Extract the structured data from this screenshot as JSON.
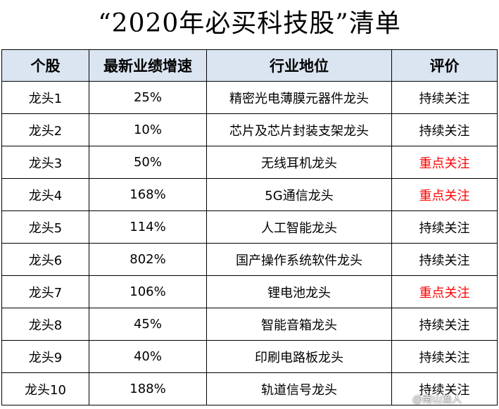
{
  "title": "“2020年必买科技股”清单",
  "table": {
    "headers": [
      "个股",
      "最新业绩增速",
      "行业地位",
      "评价"
    ],
    "rows": [
      {
        "stock": "龙头1",
        "growth": "25%",
        "position": "精密光电薄膜元器件龙头",
        "rating": "持续关注",
        "highlight": false
      },
      {
        "stock": "龙头2",
        "growth": "10%",
        "position": "芯片及芯片封装支架龙头",
        "rating": "持续关注",
        "highlight": false
      },
      {
        "stock": "龙头3",
        "growth": "50%",
        "position": "无线耳机龙头",
        "rating": "重点关注",
        "highlight": true
      },
      {
        "stock": "龙头4",
        "growth": "168%",
        "position": "5G通信龙头",
        "rating": "重点关注",
        "highlight": true
      },
      {
        "stock": "龙头5",
        "growth": "114%",
        "position": "人工智能龙头",
        "rating": "持续关注",
        "highlight": false
      },
      {
        "stock": "龙头6",
        "growth": "802%",
        "position": "国产操作系统软件龙头",
        "rating": "持续关注",
        "highlight": false
      },
      {
        "stock": "龙头7",
        "growth": "106%",
        "position": "锂电池龙头",
        "rating": "重点关注",
        "highlight": true
      },
      {
        "stock": "龙头8",
        "growth": "45%",
        "position": "智能音箱龙头",
        "rating": "持续关注",
        "highlight": false
      },
      {
        "stock": "龙头9",
        "growth": "40%",
        "position": "印刷电路板龙头",
        "rating": "持续关注",
        "highlight": false
      },
      {
        "stock": "龙头10",
        "growth": "188%",
        "position": "轨道信号龙头",
        "rating": "持续关注",
        "highlight": false
      }
    ]
  },
  "colors": {
    "header_bg": "#dbe5f1",
    "highlight_text": "#ff0000"
  },
  "watermark": "@南山渔人"
}
